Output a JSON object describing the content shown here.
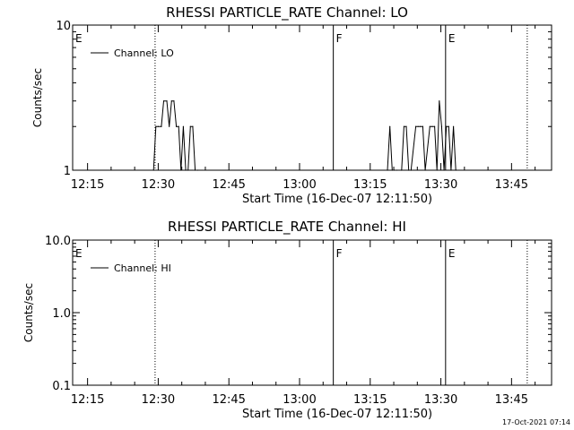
{
  "footer": {
    "timestamp": "17-Oct-2021 07:14"
  },
  "chart_data": [
    {
      "type": "line",
      "title": "RHESSI PARTICLE_RATE Channel: LO",
      "xlabel": "Start Time (16-Dec-07 12:11:50)",
      "ylabel": "Counts/sec",
      "yscale": "log",
      "ylim": [
        1,
        10
      ],
      "y_tick_labels": [
        "1",
        "10"
      ],
      "xlim": [
        "12:11:50",
        "13:53:30"
      ],
      "x_tick_labels": [
        "12:15",
        "12:30",
        "12:45",
        "13:00",
        "13:15",
        "13:30",
        "13:45"
      ],
      "legend": {
        "location": "top-left",
        "entries": [
          "Channel: LO"
        ]
      },
      "series": [
        {
          "name": "Channel: LO",
          "x": [
            "12:29:00",
            "12:29:30",
            "12:30:00",
            "12:30:40",
            "12:31:10",
            "12:31:50",
            "12:32:20",
            "12:32:50",
            "12:33:20",
            "12:33:50",
            "12:34:20",
            "12:34:50",
            "12:35:20",
            "12:35:50",
            "12:36:20",
            "12:36:50",
            "12:37:20",
            "12:37:50",
            "12:38:20",
            "13:18:40",
            "13:19:10",
            "13:19:40",
            "13:20:10",
            "13:20:40",
            "13:21:40",
            "13:22:10",
            "13:22:40",
            "13:23:10",
            "13:23:40",
            "13:24:40",
            "13:25:10",
            "13:25:40",
            "13:26:10",
            "13:26:40",
            "13:27:40",
            "13:28:10",
            "13:28:40",
            "13:29:10",
            "13:29:40",
            "13:30:10",
            "13:30:40",
            "13:31:10",
            "13:31:40",
            "13:32:10",
            "13:32:40",
            "13:33:10"
          ],
          "y": [
            1,
            2,
            2,
            2,
            3,
            3,
            2,
            3,
            3,
            2,
            2,
            1,
            2,
            1,
            1,
            2,
            2,
            1,
            1,
            1,
            2,
            1,
            1,
            1,
            1,
            2,
            2,
            1,
            1,
            2,
            2,
            2,
            2,
            1,
            2,
            2,
            2,
            1,
            3,
            2,
            1,
            2,
            2,
            1,
            2,
            1
          ]
        }
      ],
      "annotations": [
        {
          "label": "E",
          "x": "12:11:50",
          "style": "solid"
        },
        {
          "label": "",
          "x": "12:29:20",
          "style": "dotted"
        },
        {
          "label": "F",
          "x": "13:07:10",
          "style": "solid"
        },
        {
          "label": "E",
          "x": "13:31:00",
          "style": "solid"
        },
        {
          "label": "",
          "x": "13:48:20",
          "style": "dotted"
        }
      ]
    },
    {
      "type": "line",
      "title": "RHESSI PARTICLE_RATE Channel: HI",
      "xlabel": "Start Time (16-Dec-07 12:11:50)",
      "ylabel": "Counts/sec",
      "yscale": "log",
      "ylim": [
        0.1,
        10
      ],
      "y_tick_labels": [
        "0.1",
        "1.0",
        "10.0"
      ],
      "xlim": [
        "12:11:50",
        "13:53:30"
      ],
      "x_tick_labels": [
        "12:15",
        "12:30",
        "12:45",
        "13:00",
        "13:15",
        "13:30",
        "13:45"
      ],
      "legend": {
        "location": "top-left",
        "entries": [
          "Channel: HI"
        ]
      },
      "series": [
        {
          "name": "Channel: HI",
          "x": [],
          "y": []
        }
      ],
      "annotations": [
        {
          "label": "E",
          "x": "12:11:50",
          "style": "solid"
        },
        {
          "label": "",
          "x": "12:29:20",
          "style": "dotted"
        },
        {
          "label": "F",
          "x": "13:07:10",
          "style": "solid"
        },
        {
          "label": "E",
          "x": "13:31:00",
          "style": "solid"
        },
        {
          "label": "",
          "x": "13:48:20",
          "style": "dotted"
        }
      ]
    }
  ]
}
